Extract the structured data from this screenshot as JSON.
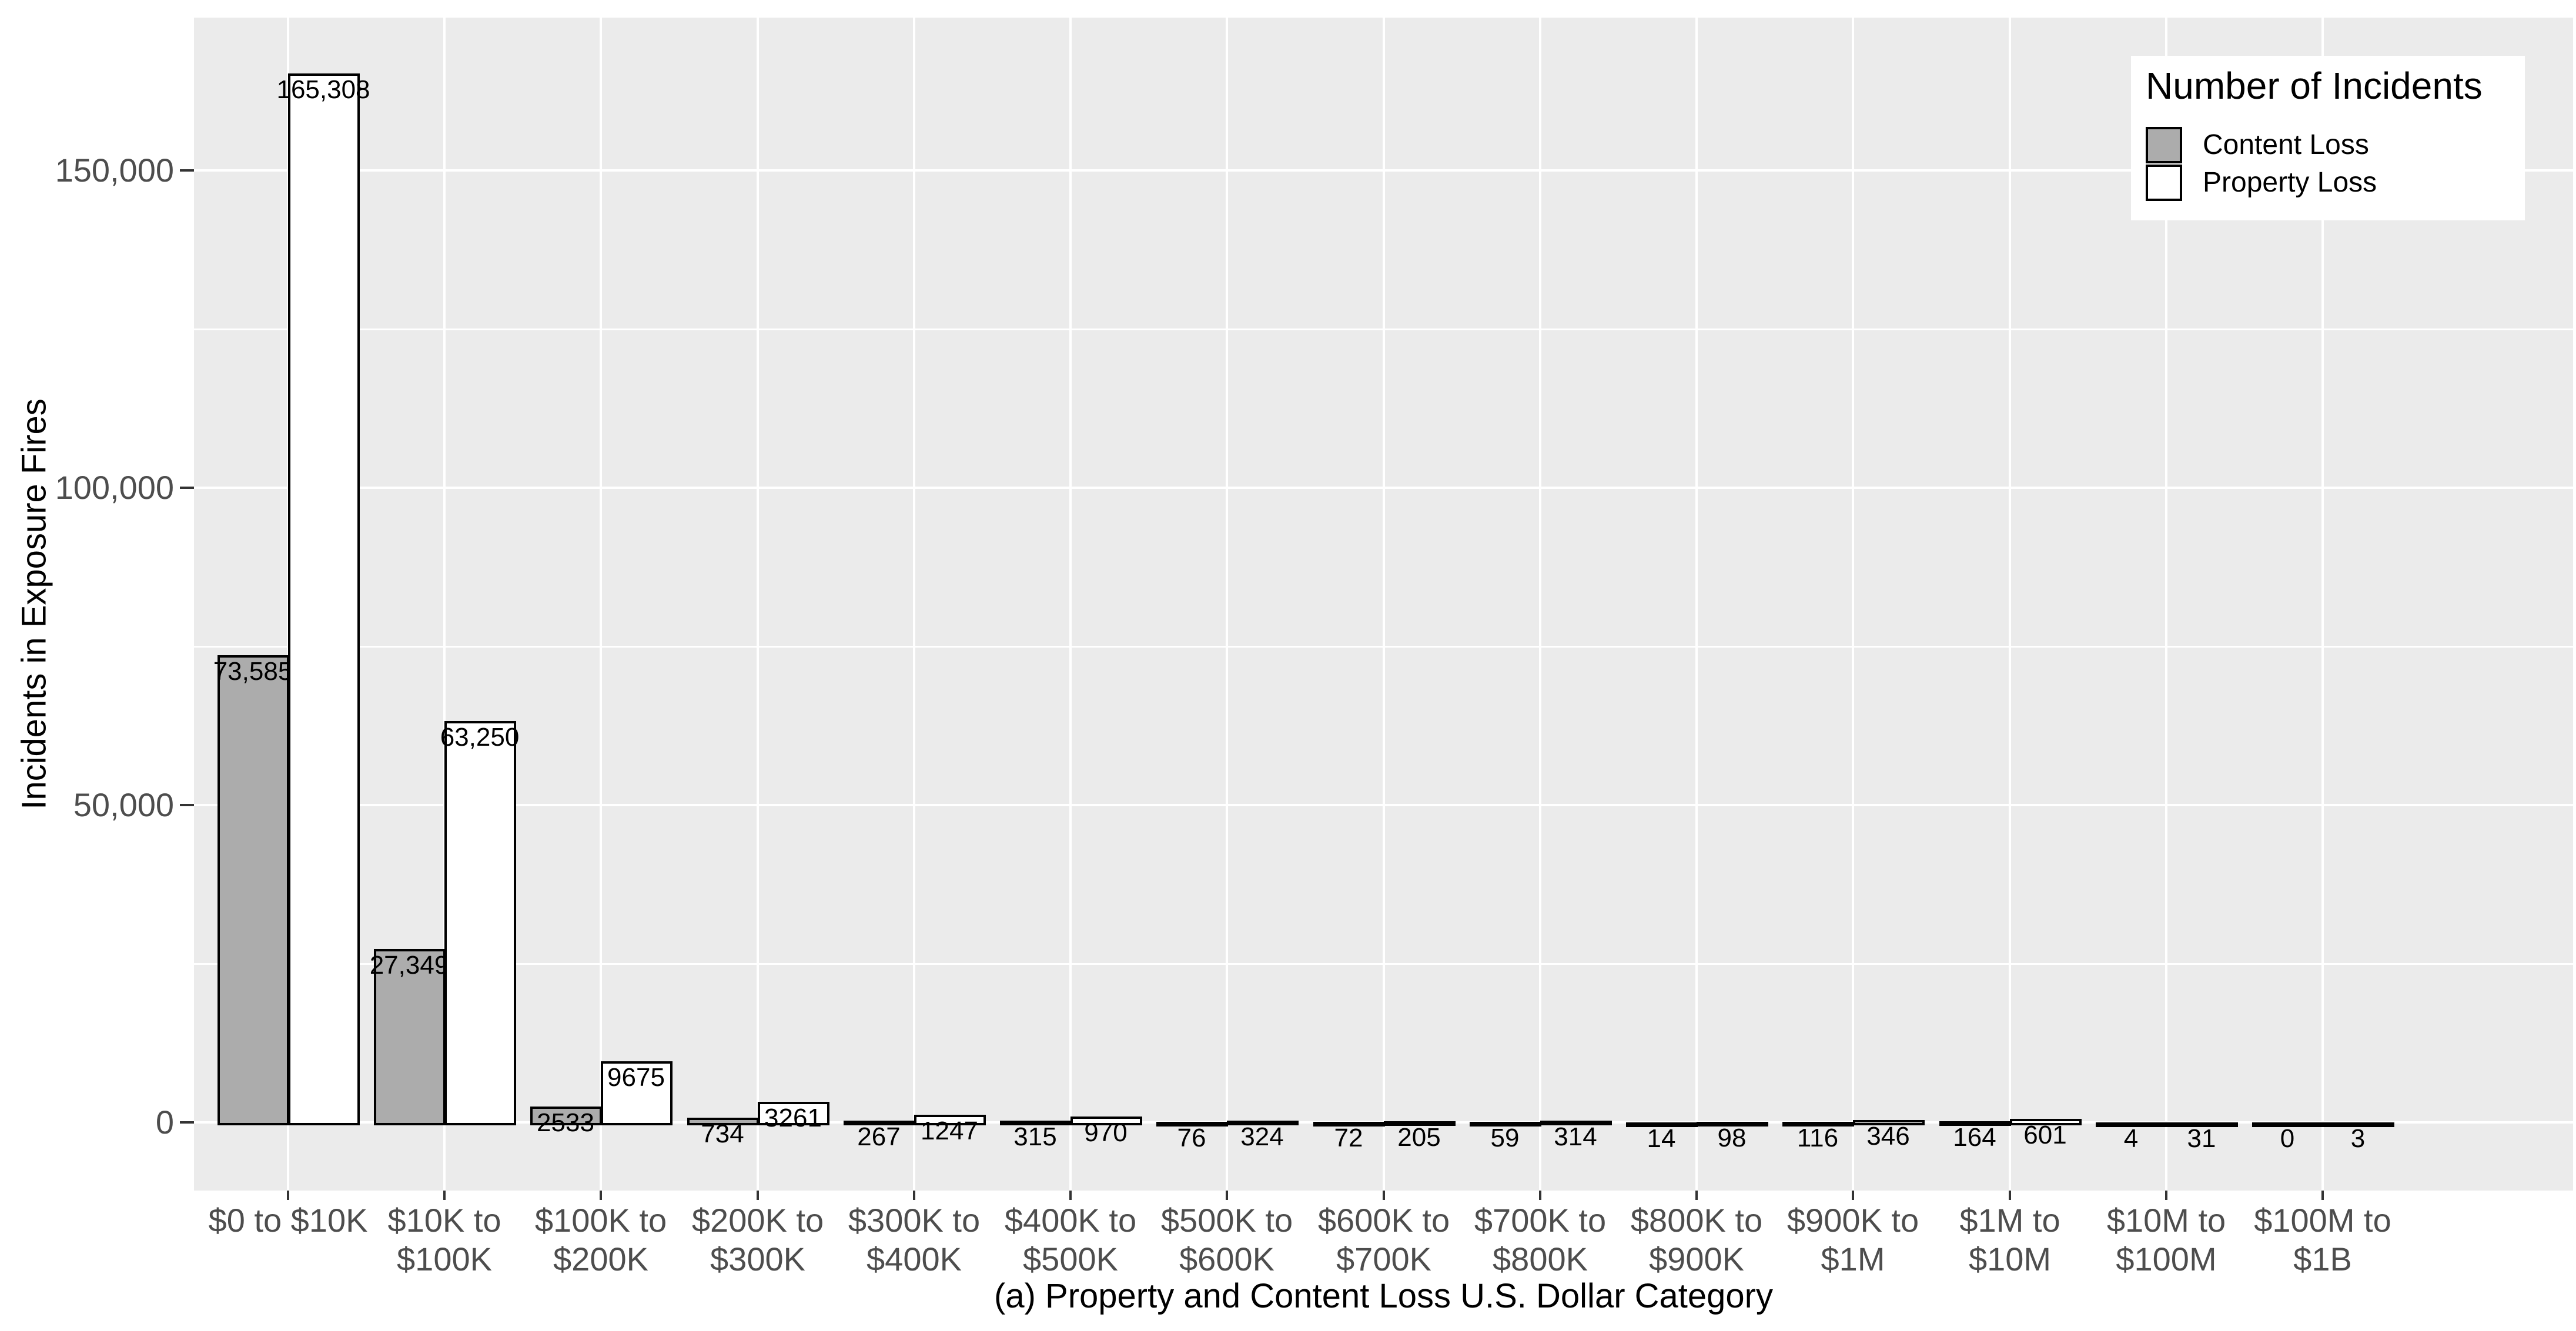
{
  "chart_data": {
    "type": "bar",
    "title": "",
    "xlabel": "(a) Property and Content Loss U.S. Dollar Category",
    "ylabel": "Incidents in Exposure Fires",
    "categories": [
      [
        "$0 to $10K"
      ],
      [
        "$10K to",
        "$100K"
      ],
      [
        "$100K to",
        "$200K"
      ],
      [
        "$200K to",
        "$300K"
      ],
      [
        "$300K to",
        "$400K"
      ],
      [
        "$400K to",
        "$500K"
      ],
      [
        "$500K to",
        "$600K"
      ],
      [
        "$600K to",
        "$700K"
      ],
      [
        "$700K to",
        "$800K"
      ],
      [
        "$800K to",
        "$900K"
      ],
      [
        "$900K to",
        "$1M"
      ],
      [
        "$1M to",
        "$10M"
      ],
      [
        "$10M to",
        "$100M"
      ],
      [
        "$100M to",
        "$1B"
      ]
    ],
    "series": [
      {
        "name": "Content Loss",
        "color": "#ACACAC",
        "values": [
          73585,
          27349,
          2533,
          734,
          267,
          315,
          76,
          72,
          59,
          14,
          116,
          164,
          4,
          0
        ],
        "labels": [
          "73,585",
          "27,349",
          "2533",
          "734",
          "267",
          "315",
          "76",
          "72",
          "59",
          "14",
          "116",
          "164",
          "4",
          "0"
        ]
      },
      {
        "name": "Property Loss",
        "color": "#FFFFFF",
        "values": [
          165308,
          63250,
          9675,
          3261,
          1247,
          970,
          324,
          205,
          314,
          98,
          346,
          601,
          31,
          3
        ],
        "labels": [
          "165,308",
          "63,250",
          "9675",
          "3261",
          "1247",
          "970",
          "324",
          "205",
          "314",
          "98",
          "346",
          "601",
          "31",
          "3"
        ]
      }
    ],
    "legend": {
      "title": "Number of Incidents",
      "position": "top-right-inside"
    },
    "y_axis": {
      "major_ticks": [
        {
          "value": 0,
          "label": "0"
        },
        {
          "value": 50000,
          "label": "50,000"
        },
        {
          "value": 100000,
          "label": "100,000"
        },
        {
          "value": 150000,
          "label": "150,000"
        }
      ],
      "minor_ticks": [
        25000,
        75000,
        125000
      ],
      "ylim": [
        -11000,
        174000
      ],
      "grid": true
    },
    "colors": {
      "panel_bg": "#EBEBEB",
      "grid": "#FFFFFF",
      "bar_border": "#000000",
      "tick_label": "#4D4D4D",
      "text": "#000000"
    }
  }
}
